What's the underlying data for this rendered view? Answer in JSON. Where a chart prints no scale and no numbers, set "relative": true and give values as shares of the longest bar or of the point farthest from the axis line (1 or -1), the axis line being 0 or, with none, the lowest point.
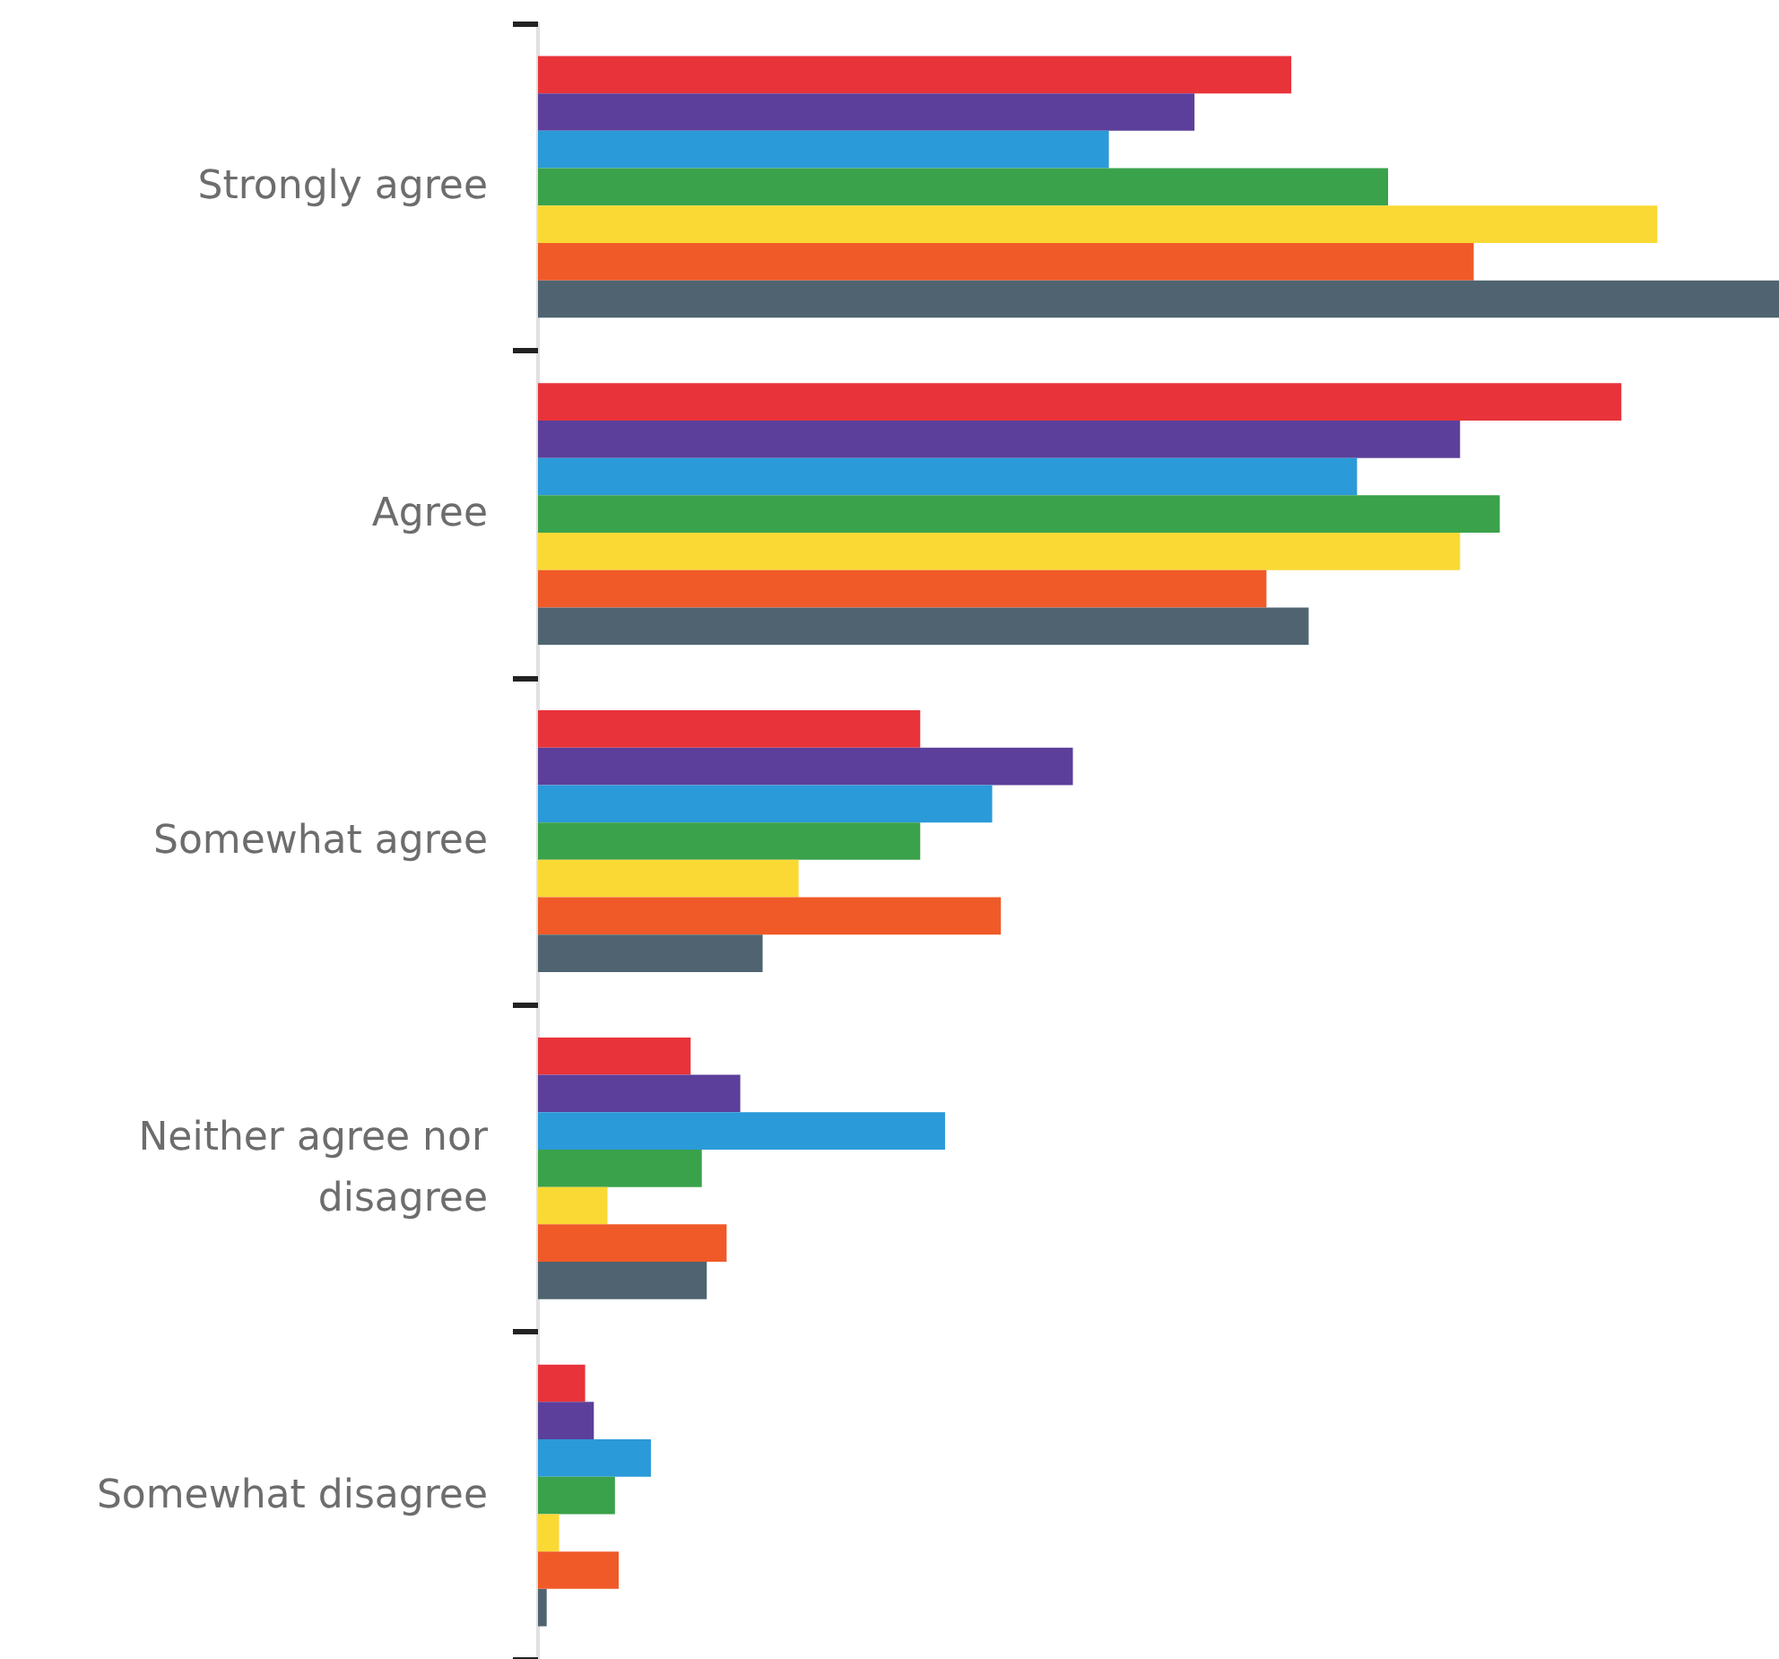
{
  "chart_data": {
    "type": "bar",
    "orientation": "horizontal",
    "relative": true,
    "categories": [
      "Strongly agree",
      "Agree",
      "Somewhat agree",
      "Neither agree nor disagree",
      "Somewhat disagree"
    ],
    "series": [
      {
        "color": "#e8333a",
        "values": [
          0.607,
          0.873,
          0.308,
          0.123,
          0.038
        ]
      },
      {
        "color": "#5b3f9a",
        "values": [
          0.529,
          0.743,
          0.431,
          0.163,
          0.045
        ]
      },
      {
        "color": "#2a9ad8",
        "values": [
          0.46,
          0.66,
          0.366,
          0.328,
          0.091
        ]
      },
      {
        "color": "#3aa24a",
        "values": [
          0.685,
          0.775,
          0.308,
          0.132,
          0.062
        ]
      },
      {
        "color": "#fbd935",
        "values": [
          0.902,
          0.743,
          0.21,
          0.056,
          0.017
        ]
      },
      {
        "color": "#f05a28",
        "values": [
          0.754,
          0.587,
          0.373,
          0.152,
          0.065
        ]
      },
      {
        "color": "#4f6470",
        "values": [
          1,
          0.621,
          0.181,
          0.136,
          0.007
        ]
      }
    ]
  }
}
